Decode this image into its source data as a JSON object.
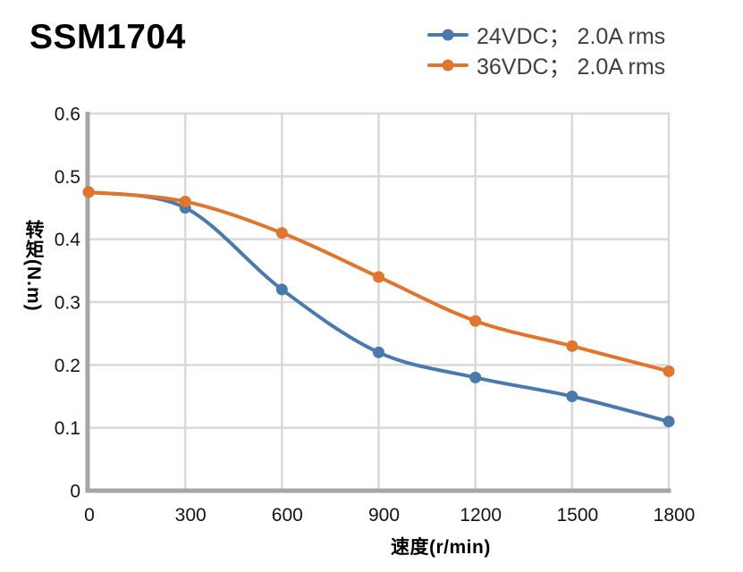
{
  "chart_data": {
    "type": "line",
    "title": "SSM1704",
    "xlabel": "速度(r/min)",
    "ylabel": "转矩(N.m)",
    "xlim": [
      0,
      1800
    ],
    "ylim": [
      0,
      0.6
    ],
    "grid": true,
    "legend_position": "top-right",
    "x": [
      0,
      300,
      600,
      900,
      1200,
      1500,
      1800
    ],
    "x_tick_labels": [
      "0",
      "300",
      "600",
      "900",
      "1200",
      "1500",
      "1800"
    ],
    "y_ticks": [
      0,
      0.1,
      0.2,
      0.3,
      0.4,
      0.5,
      0.6
    ],
    "y_tick_labels": [
      "0",
      "0.1",
      "0.2",
      "0.3",
      "0.4",
      "0.5",
      "0.6"
    ],
    "series": [
      {
        "name": "24VDC； 2.0A rms",
        "color": "#4a79ad",
        "values": [
          0.475,
          0.45,
          0.32,
          0.22,
          0.18,
          0.15,
          0.11
        ]
      },
      {
        "name": "36VDC； 2.0A rms",
        "color": "#e0762e",
        "values": [
          0.475,
          0.46,
          0.41,
          0.34,
          0.27,
          0.23,
          0.19
        ]
      }
    ],
    "colors": {
      "grid": "#d9d9d9",
      "axis": "#a6a6a6",
      "tick_text": "#141414",
      "legend_text": "#3f3f3f"
    }
  }
}
